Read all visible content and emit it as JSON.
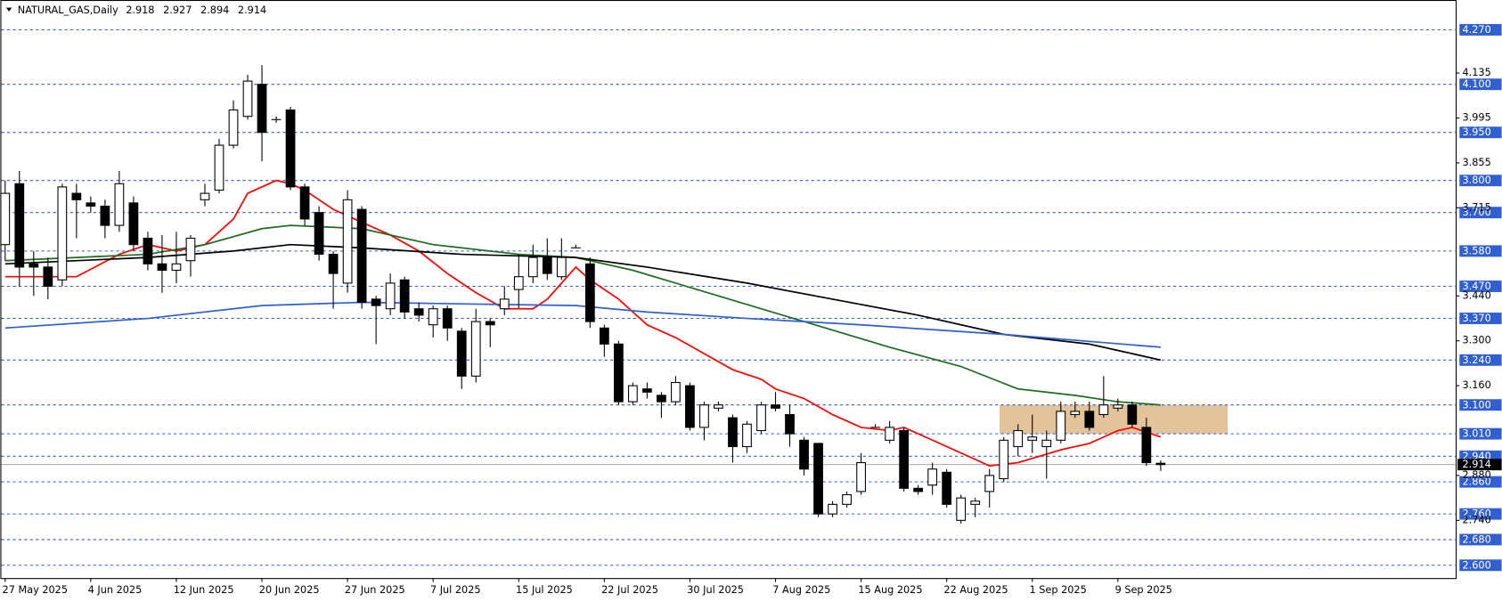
{
  "chart_data": {
    "type": "candlestick",
    "title": "NATURAL_GAS,Daily",
    "categories": [
      "27 May 2025",
      null,
      null,
      null,
      null,
      null,
      "4 Jun 2025",
      null,
      null,
      null,
      null,
      null,
      "12 Jun 2025",
      null,
      null,
      null,
      null,
      null,
      "20 Jun 2025",
      null,
      null,
      null,
      null,
      null,
      "27 Jun 2025",
      null,
      null,
      null,
      null,
      null,
      "7 Jul 2025",
      null,
      null,
      null,
      null,
      null,
      "15 Jul 2025",
      null,
      null,
      null,
      null,
      null,
      "22 Jul 2025",
      null,
      null,
      null,
      null,
      null,
      "30 Jul 2025",
      null,
      null,
      null,
      null,
      null,
      "7 Aug 2025",
      null,
      null,
      null,
      null,
      null,
      "15 Aug 2025",
      null,
      null,
      null,
      null,
      null,
      "22 Aug 2025",
      null,
      null,
      null,
      null,
      null,
      "1 Sep 2025",
      null,
      null,
      null,
      null,
      null,
      "9 Sep 2025",
      null,
      null,
      null
    ],
    "ohlc": [
      [
        3.6,
        3.8,
        3.55,
        3.76
      ],
      [
        3.79,
        3.83,
        3.47,
        3.53
      ],
      [
        3.54,
        3.58,
        3.44,
        3.53
      ],
      [
        3.53,
        3.56,
        3.43,
        3.47
      ],
      [
        3.49,
        3.79,
        3.47,
        3.78
      ],
      [
        3.76,
        3.79,
        3.62,
        3.74
      ],
      [
        3.73,
        3.75,
        3.7,
        3.72
      ],
      [
        3.72,
        3.74,
        3.62,
        3.66
      ],
      [
        3.66,
        3.83,
        3.64,
        3.79
      ],
      [
        3.73,
        3.75,
        3.58,
        3.6
      ],
      [
        3.62,
        3.64,
        3.52,
        3.54
      ],
      [
        3.54,
        3.63,
        3.45,
        3.52
      ],
      [
        3.52,
        3.64,
        3.48,
        3.54
      ],
      [
        3.55,
        3.63,
        3.5,
        3.62
      ],
      [
        3.74,
        3.79,
        3.72,
        3.76
      ],
      [
        3.77,
        3.93,
        3.76,
        3.91
      ],
      [
        3.91,
        4.05,
        3.9,
        4.02
      ],
      [
        4.0,
        4.13,
        3.99,
        4.11
      ],
      [
        4.1,
        4.16,
        3.86,
        3.95
      ],
      [
        3.99,
        4.0,
        3.98,
        3.99
      ],
      [
        4.02,
        4.03,
        3.77,
        3.78
      ],
      [
        3.78,
        3.79,
        3.66,
        3.68
      ],
      [
        3.7,
        3.72,
        3.55,
        3.57
      ],
      [
        3.57,
        3.58,
        3.4,
        3.51
      ],
      [
        3.48,
        3.77,
        3.45,
        3.74
      ],
      [
        3.71,
        3.72,
        3.4,
        3.42
      ],
      [
        3.43,
        3.44,
        3.29,
        3.41
      ],
      [
        3.4,
        3.51,
        3.38,
        3.48
      ],
      [
        3.49,
        3.5,
        3.37,
        3.39
      ],
      [
        3.4,
        3.42,
        3.36,
        3.38
      ],
      [
        3.35,
        3.41,
        3.31,
        3.4
      ],
      [
        3.4,
        3.41,
        3.3,
        3.34
      ],
      [
        3.33,
        3.34,
        3.15,
        3.19
      ],
      [
        3.19,
        3.4,
        3.17,
        3.36
      ],
      [
        3.36,
        3.37,
        3.28,
        3.35
      ],
      [
        3.4,
        3.47,
        3.38,
        3.43
      ],
      [
        3.46,
        3.57,
        3.4,
        3.5
      ],
      [
        3.5,
        3.6,
        3.48,
        3.56
      ],
      [
        3.56,
        3.62,
        3.49,
        3.51
      ],
      [
        3.5,
        3.62,
        3.49,
        3.56
      ],
      [
        3.59,
        3.6,
        3.59,
        3.59
      ],
      [
        3.54,
        3.56,
        3.34,
        3.36
      ],
      [
        3.34,
        3.35,
        3.25,
        3.29
      ],
      [
        3.29,
        3.3,
        3.1,
        3.11
      ],
      [
        3.11,
        3.17,
        3.1,
        3.16
      ],
      [
        3.15,
        3.17,
        3.12,
        3.14
      ],
      [
        3.13,
        3.14,
        3.06,
        3.11
      ],
      [
        3.11,
        3.19,
        3.1,
        3.17
      ],
      [
        3.16,
        3.17,
        3.02,
        3.03
      ],
      [
        3.03,
        3.11,
        2.99,
        3.1
      ],
      [
        3.09,
        3.11,
        3.08,
        3.1
      ],
      [
        3.06,
        3.07,
        2.92,
        2.97
      ],
      [
        2.97,
        3.05,
        2.95,
        3.04
      ],
      [
        3.02,
        3.11,
        3.01,
        3.1
      ],
      [
        3.1,
        3.14,
        3.08,
        3.09
      ],
      [
        3.07,
        3.1,
        2.97,
        3.01
      ],
      [
        2.99,
        3.0,
        2.88,
        2.9
      ],
      [
        2.98,
        2.98,
        2.75,
        2.76
      ],
      [
        2.76,
        2.8,
        2.75,
        2.79
      ],
      [
        2.79,
        2.83,
        2.78,
        2.82
      ],
      [
        2.83,
        2.95,
        2.82,
        2.92
      ],
      [
        3.03,
        3.04,
        3.03,
        3.03
      ],
      [
        2.99,
        3.05,
        2.98,
        3.03
      ],
      [
        3.02,
        3.03,
        2.83,
        2.84
      ],
      [
        2.84,
        2.85,
        2.82,
        2.83
      ],
      [
        2.85,
        2.92,
        2.82,
        2.9
      ],
      [
        2.89,
        2.9,
        2.78,
        2.79
      ],
      [
        2.74,
        2.82,
        2.73,
        2.81
      ],
      [
        2.79,
        2.81,
        2.75,
        2.8
      ],
      [
        2.83,
        2.9,
        2.78,
        2.88
      ],
      [
        2.87,
        3.0,
        2.86,
        2.99
      ],
      [
        2.97,
        3.04,
        2.94,
        3.02
      ],
      [
        2.99,
        3.07,
        2.95,
        3.0
      ],
      [
        2.97,
        3.02,
        2.87,
        2.99
      ],
      [
        2.99,
        3.11,
        2.98,
        3.08
      ],
      [
        3.07,
        3.11,
        3.06,
        3.08
      ],
      [
        3.08,
        3.11,
        3.02,
        3.03
      ],
      [
        3.07,
        3.19,
        3.06,
        3.1
      ],
      [
        3.09,
        3.12,
        3.08,
        3.1
      ],
      [
        3.1,
        3.11,
        3.03,
        3.04
      ],
      [
        3.03,
        3.06,
        2.91,
        2.92
      ],
      [
        2.918,
        2.927,
        2.894,
        2.914
      ]
    ],
    "series": [
      {
        "color": "#ff0000",
        "x": [
          0,
          5,
          8,
          10,
          12,
          14,
          16,
          17,
          19,
          20,
          21,
          22,
          23,
          25,
          27,
          29,
          31,
          33,
          35,
          37,
          38,
          40,
          41,
          43,
          45,
          47,
          49,
          51,
          53,
          54,
          56,
          58,
          60,
          62,
          63,
          65,
          68,
          69,
          71,
          74,
          76,
          78,
          79,
          81
        ],
        "values": [
          3.5,
          3.5,
          3.57,
          3.6,
          3.58,
          3.6,
          3.68,
          3.76,
          3.8,
          3.79,
          3.77,
          3.74,
          3.71,
          3.67,
          3.63,
          3.58,
          3.51,
          3.45,
          3.4,
          3.4,
          3.43,
          3.53,
          3.49,
          3.43,
          3.35,
          3.31,
          3.26,
          3.21,
          3.18,
          3.15,
          3.12,
          3.07,
          3.03,
          3.02,
          3.03,
          2.99,
          2.93,
          2.91,
          2.92,
          2.96,
          2.98,
          3.02,
          3.03,
          3.0
        ]
      },
      {
        "color": "#1e6b1e",
        "x": [
          0,
          10,
          14,
          18,
          20,
          25,
          30,
          36,
          40,
          44,
          50,
          56,
          62,
          67,
          71,
          75,
          78,
          81
        ],
        "values": [
          3.55,
          3.57,
          3.6,
          3.65,
          3.66,
          3.65,
          3.6,
          3.57,
          3.56,
          3.52,
          3.44,
          3.36,
          3.28,
          3.22,
          3.15,
          3.13,
          3.11,
          3.1
        ]
      },
      {
        "color": "#000000",
        "x": [
          0,
          10,
          16,
          20,
          25,
          32,
          40,
          45,
          52,
          58,
          64,
          70,
          76,
          81
        ],
        "values": [
          3.54,
          3.56,
          3.58,
          3.6,
          3.59,
          3.57,
          3.56,
          3.53,
          3.48,
          3.43,
          3.38,
          3.32,
          3.29,
          3.24
        ]
      },
      {
        "color": "#2f5fd0",
        "x": [
          0,
          10,
          18,
          25,
          40,
          45,
          52,
          60,
          70,
          81
        ],
        "values": [
          3.34,
          3.37,
          3.41,
          3.42,
          3.41,
          3.39,
          3.37,
          3.35,
          3.32,
          3.28
        ]
      }
    ],
    "zone": {
      "color": "#deb887",
      "xlim": [
        69.7,
        85.7
      ],
      "ylim": [
        3.01,
        3.1
      ]
    },
    "ylim": [
      2.56,
      4.36
    ],
    "yticks": [
      4.135,
      3.995,
      3.855,
      3.715,
      {
        "value": 3.44,
        "label": "3.440"
      },
      {
        "value": 3.3,
        "label": "3.300"
      },
      {
        "value": 3.16,
        "label": "3.160"
      },
      {
        "value": 2.88,
        "label": "2.880"
      },
      {
        "value": 2.74,
        "label": "2.740"
      }
    ],
    "levels": [
      {
        "value": 4.27,
        "label": "4.270"
      },
      {
        "value": 4.1,
        "label": "4.100"
      },
      {
        "value": 3.95,
        "label": "3.950"
      },
      {
        "value": 3.8,
        "label": "3.800"
      },
      {
        "value": 3.7,
        "label": "3.700"
      },
      {
        "value": 3.58,
        "label": "3.580"
      },
      {
        "value": 3.47,
        "label": "3.470"
      },
      {
        "value": 3.37,
        "label": "3.370"
      },
      {
        "value": 3.24,
        "label": "3.240"
      },
      {
        "value": 3.1,
        "label": "3.100"
      },
      {
        "value": 3.01,
        "label": "3.010"
      },
      {
        "value": 2.94,
        "label": "2.940"
      },
      {
        "value": 2.86,
        "label": "2.860"
      },
      {
        "value": 2.76,
        "label": "2.760"
      },
      {
        "value": 2.68,
        "label": "2.680"
      },
      {
        "value": 2.6,
        "label": "2.600"
      }
    ],
    "level_color": "#2f5fd0",
    "up_color": "#ffffff",
    "down_color": "#000000"
  }
}
